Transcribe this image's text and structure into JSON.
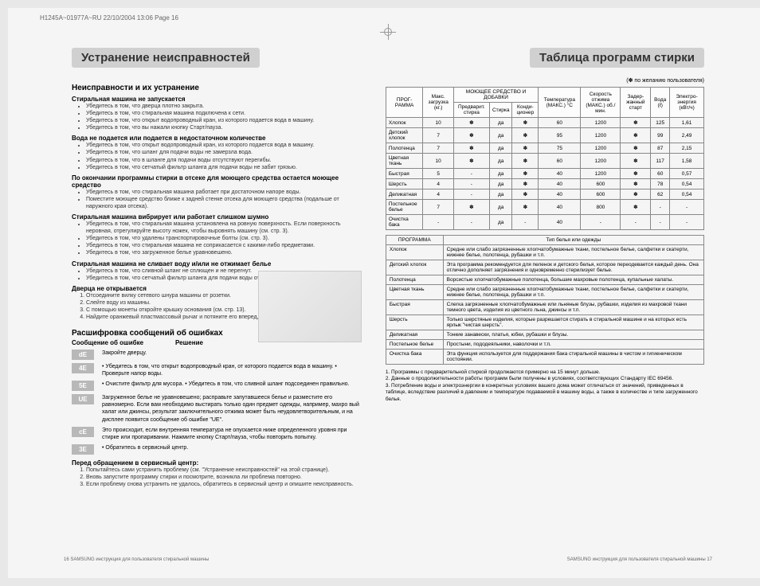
{
  "meta": {
    "header": "H1245A~01977A~RU  22/10/2004  13:06  Page 16"
  },
  "left": {
    "title": "Устранение неисправностей",
    "h1": "Неисправности и их устранение",
    "p1": {
      "h": "Стиральная машина не запускается",
      "items": [
        "Убедитесь в том, что дверца плотно закрыта.",
        "Убедитесь в том, что стиральная машина подключена к сети.",
        "Убедитесь в том, что открыт водопроводный кран, из которого подается вода в машину.",
        "Убедитесь в том, что вы нажали кнопку Старт/пауза."
      ]
    },
    "p2": {
      "h": "Вода не подается или подается в недостаточном количестве",
      "items": [
        "Убедитесь в том, что открыт водопроводный кран, из которого подается вода в машину.",
        "Убедитесь в том, что шланг для подачи воды не замерзла вода.",
        "Убедитесь в том, что в шланге для подачи воды отсутствуют перегибы.",
        "Убедитесь в том, что сетчатый фильтр шланга для подачи воды не забит грязью."
      ]
    },
    "p3": {
      "h": "По окончании программы стирки в отсеке для моющего средства остается моющее средство",
      "items": [
        "Убедитесь в том, что стиральная машина работает при достаточном напоре воды.",
        "Поместите моющее средство ближе к задней стенке отсека для моющего средства (подальше от наружного края отсека)."
      ]
    },
    "p4": {
      "h": "Стиральная машина вибрирует или работает слишком шумно",
      "items": [
        "Убедитесь в том, что стиральная машина установлена на ровную поверхность. Если поверхность неровная, отрегулируйте высоту ножек, чтобы выровнять машину (см. стр. 3).",
        "Убедитесь в том, что удалены транспортировочные болты (см. стр. 3).",
        "Убедитесь в том, что стиральная машина не соприкасается с какими-либо предметами.",
        "Убедитесь в том, что загруженное белье уравновешено."
      ]
    },
    "p5": {
      "h": "Стиральная машина не сливает воду и/или не отжимает белье",
      "items": [
        "Убедитесь в том, что сливной шланг не сплющен и не перегнут.",
        "Убедитесь в том, что сетчатый фильтр шланга для подачи воды отсутствует грязь (см. стр. 14)."
      ]
    },
    "p6": {
      "h": "Дверца не открывается",
      "items": [
        "Отсоедините вилку сетевого шнура машины от розетки.",
        "Слейте воду из машины.",
        "С помощью монеты откройте крышку основания (см. стр. 13).",
        "Найдите оранжевый пластмассовый рычаг и потяните его вперед, чтобы открыть дверцу машины."
      ]
    },
    "h2": "Расшифровка сообщений об ошибках",
    "errHeader": {
      "c1": "Сообщение об ошибке",
      "c2": "Решение"
    },
    "errors": [
      {
        "code": "dE",
        "desc": "Закройте дверцу."
      },
      {
        "code": "4E",
        "desc": "• Убедитесь в том, что открыт водопроводный кран, от которого подается вода в машину.\n• Проверьте напор воды."
      },
      {
        "code": "5E",
        "desc": "• Очистите фильтр для мусора.\n• Убедитесь в том, что сливной шланг подсоединен правильно."
      },
      {
        "code": "UE",
        "desc": "Загруженное белье не уравновешено; расправьте запутавшееся белье и разместите его равномерно.\nЕсли вам необходимо выстирать только один предмет одежды, например, махро вый халат или джинсы, результат заключительного отжима может быть неудовлетворительным, и на дисплее появится сообщение об ошибке \"UE\"."
      },
      {
        "code": "cE",
        "desc": "Это происходит, если внутренняя температура не опускается ниже определенного уровня при стирке или пропаривании. Нажмите кнопку Старт/пауза, чтобы повторить попытку."
      },
      {
        "code": "3E",
        "desc": "• Обратитесь в сервисный центр."
      }
    ],
    "beforeService": {
      "h": "Перед обращением в сервисный центр:",
      "items": [
        "Попытайтесь сами устранить проблему (см. \"Устранение неисправностей\" на этой странице).",
        "Вновь запустите программу стирки и посмотрите, возникла ли проблема повторно.",
        "Если проблему снова устранить не удалось, обратитесь в сервисный центр и опишите неисправность."
      ]
    }
  },
  "right": {
    "title": "Таблица программ стирки",
    "note": "(✽ по желанию пользователя)",
    "progTable": {
      "headers": {
        "c1": "ПРОГ-РАММА",
        "c2": "Макс. загрузка (кг.)",
        "c3": "МОЮЩЕЕ СРЕДСТВО И ДОБАВКИ",
        "c3a": "Предварит. стирка",
        "c3b": "Стирка",
        "c3c": "Конди-ционер",
        "c4": "Температура (МАКС.) °C",
        "c5": "Скорость отжима (МАКС.) об./мин.",
        "c6": "Задер-жанный старт",
        "c7": "Вода (ℓ)",
        "c8": "Электро-энергия (кВт/ч)"
      },
      "rows": [
        [
          "Хлопок",
          "10",
          "✽",
          "да",
          "✽",
          "60",
          "1200",
          "✽",
          "125",
          "1,61"
        ],
        [
          "Детский хлопок",
          "7",
          "✽",
          "да",
          "✽",
          "95",
          "1200",
          "✽",
          "99",
          "2,49"
        ],
        [
          "Полотенца",
          "7",
          "✽",
          "да",
          "✽",
          "75",
          "1200",
          "✽",
          "87",
          "2,15"
        ],
        [
          "Цветная ткань",
          "10",
          "✽",
          "да",
          "✽",
          "60",
          "1200",
          "✽",
          "117",
          "1,58"
        ],
        [
          "Быстрая",
          "5",
          "-",
          "да",
          "✽",
          "40",
          "1200",
          "✽",
          "60",
          "0,57"
        ],
        [
          "Шерсть",
          "4",
          "-",
          "да",
          "✽",
          "40",
          "600",
          "✽",
          "78",
          "0,54"
        ],
        [
          "Деликатная",
          "4",
          "-",
          "да",
          "✽",
          "40",
          "600",
          "✽",
          "62",
          "0,54"
        ],
        [
          "Постельное белье",
          "7",
          "✽",
          "да",
          "✽",
          "40",
          "800",
          "✽",
          "-",
          "-"
        ],
        [
          "Очистка бака",
          "-",
          "-",
          "да",
          "-",
          "40",
          "-",
          "-",
          "-",
          "-"
        ]
      ]
    },
    "descTable": {
      "h1": "ПРОГРАММА",
      "h2": "Тип белья или одежды",
      "rows": [
        [
          "Хлопок",
          "Средне или слабо загрязненные хлопчатобумажные ткани, постельное белье, салфетки и скатерти, нижнее белье, полотенца, рубашки и т.п."
        ],
        [
          "Детский хлопок",
          "Эта программа рекомендуется для пеленок и детского белья, которое переодевается каждый день. Она отлично дополняет загрязнения и одновременно стерилизует белье."
        ],
        [
          "Полотенца",
          "Ворсистые хлопчатобумажные полотенца, большие махровые полотенца, купальные халаты."
        ],
        [
          "Цветная ткань",
          "Средне или слабо загрязненные хлопчатобумажные ткани, постельное белье, салфетки и скатерти, нижнее белье, полотенца, рубашки и т.п."
        ],
        [
          "Быстрая",
          "Слегка загрязненные хлопчатобумажные или льняные блузы, рубашки, изделия из махровой ткани темного цвета, изделия из цветного льна, джинсы и т.п."
        ],
        [
          "Шерсть",
          "Только шерстяные изделия, которые разрешается стирать в стиральной машине и на которых есть ярлык \"чистая шерсть\"."
        ],
        [
          "Деликатная",
          "Тонкие занавески, платья, юбки, рубашки и блузы."
        ],
        [
          "Постельное белье",
          "Простыни, пододеяльники, наволочки и т.п."
        ],
        [
          "Очистка бака",
          "Эта функция используется для поддержания бака стиральной машины в чистом и гигиеническом состоянии."
        ]
      ]
    },
    "footnotes": [
      "1. Программы с предварительной стиркой продолжаются примерно на 15 минут дольше.",
      "2. Данные о продолжительности работы программ были получены в условиях, соответствующих Стандарту IEC 69456.",
      "3. Потребление воды и электроэнергии в конкретных условиях вашего дома может отличаться от значений, приведенных в таблице, вследствие различий в давлении и температуре подаваемой в машину воды, а также в количестве и типе загруженного белья."
    ]
  },
  "footer": {
    "left": "16  SAMSUNG инструкция для пользователя стиральной машины",
    "right": "SAMSUNG инструкция для пользователя стиральной машины  17"
  }
}
